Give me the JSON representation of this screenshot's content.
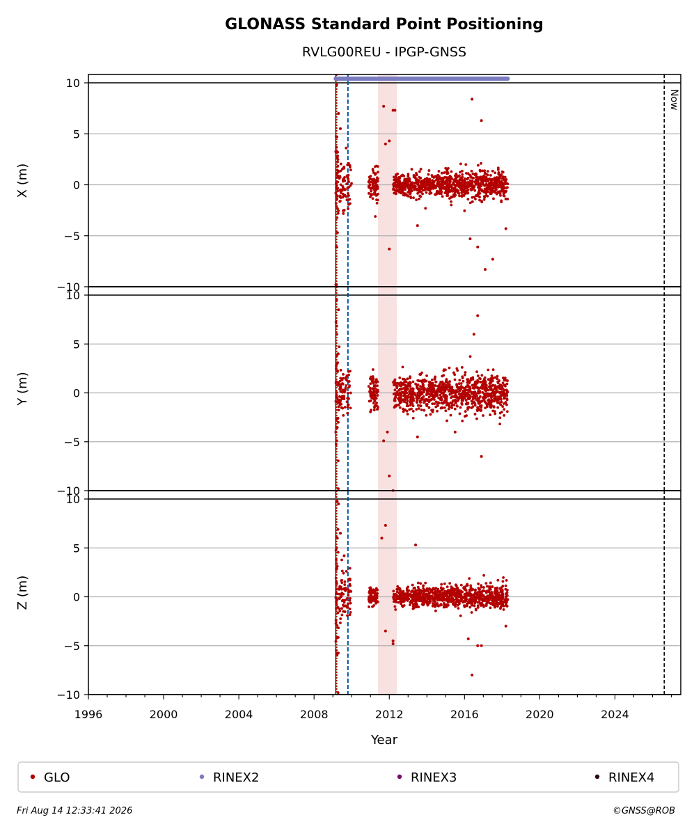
{
  "chart_data": {
    "type": "scatter",
    "title": "GLONASS Standard Point Positioning",
    "subtitle": "RVLG00REU - IPGP-GNSS",
    "xlabel": "Year",
    "xlim": [
      1996,
      2027.5
    ],
    "x_ticks": [
      "1996",
      "2000",
      "2004",
      "2008",
      "2012",
      "2016",
      "2020",
      "2024"
    ],
    "grid": "horizontal",
    "now_label": "Now",
    "now_year": 2026.62,
    "vlines": [
      {
        "year": 2009.15,
        "color": "#1a7a1a",
        "style": "solid"
      },
      {
        "year": 2009.2,
        "color": "#b30000",
        "style": "dotted"
      },
      {
        "year": 2009.8,
        "color": "#0050a0",
        "style": "dashed"
      }
    ],
    "shaded_gap": [
      2011.4,
      2012.4
    ],
    "rinex2_coverage": [
      2009.15,
      2018.3
    ],
    "panels": [
      {
        "ylabel": "X (m)",
        "ylim": [
          -10,
          10
        ],
        "yticks": [
          "10",
          "5",
          "0",
          "−5",
          "−10"
        ],
        "clusters": [
          {
            "x": [
              2009.15,
              2009.3
            ],
            "spread": 6.5,
            "n": 40
          },
          {
            "x": [
              2009.3,
              2010.0
            ],
            "spread": 2.2,
            "n": 70
          },
          {
            "x": [
              2010.9,
              2011.4
            ],
            "spread": 1.4,
            "n": 80
          },
          {
            "x": [
              2012.2,
              2014.8
            ],
            "spread": 1.0,
            "n": 380
          },
          {
            "x": [
              2014.8,
              2018.3
            ],
            "spread": 1.2,
            "n": 520
          }
        ],
        "outliers": [
          [
            2009.2,
            9.8
          ],
          [
            2009.3,
            7.0
          ],
          [
            2009.4,
            5.5
          ],
          [
            2011.7,
            7.7
          ],
          [
            2012.2,
            7.3
          ],
          [
            2012.3,
            7.3
          ],
          [
            2011.8,
            4.0
          ],
          [
            2012.0,
            4.3
          ],
          [
            2016.4,
            8.4
          ],
          [
            2016.9,
            6.3
          ],
          [
            2017.1,
            -8.3
          ],
          [
            2017.5,
            -7.3
          ],
          [
            2016.7,
            -6.1
          ],
          [
            2012.0,
            -6.3
          ],
          [
            2016.3,
            -5.3
          ],
          [
            2013.5,
            -4.0
          ],
          [
            2018.2,
            -4.3
          ]
        ]
      },
      {
        "ylabel": "Y (m)",
        "ylim": [
          -10,
          10
        ],
        "yticks": [
          "10",
          "5",
          "0",
          "−5",
          "−10"
        ],
        "clusters": [
          {
            "x": [
              2009.15,
              2009.3
            ],
            "spread": 7.0,
            "n": 40
          },
          {
            "x": [
              2009.3,
              2010.0
            ],
            "spread": 2.5,
            "n": 70
          },
          {
            "x": [
              2010.9,
              2011.4
            ],
            "spread": 2.0,
            "n": 80
          },
          {
            "x": [
              2012.2,
              2014.8
            ],
            "spread": 1.5,
            "n": 380
          },
          {
            "x": [
              2014.8,
              2018.3
            ],
            "spread": 1.8,
            "n": 520
          }
        ],
        "outliers": [
          [
            2009.2,
            9.5
          ],
          [
            2009.3,
            8.5
          ],
          [
            2016.7,
            7.9
          ],
          [
            2016.5,
            6.0
          ],
          [
            2011.9,
            -4.0
          ],
          [
            2011.7,
            -4.9
          ],
          [
            2012.0,
            -8.5
          ],
          [
            2012.2,
            -10.0
          ],
          [
            2016.9,
            -6.5
          ],
          [
            2013.5,
            -4.5
          ],
          [
            2015.5,
            -4.0
          ]
        ]
      },
      {
        "ylabel": "Z (m)",
        "ylim": [
          -10,
          10
        ],
        "yticks": [
          "10",
          "5",
          "0",
          "−5",
          "−10"
        ],
        "clusters": [
          {
            "x": [
              2009.15,
              2009.3
            ],
            "spread": 7.5,
            "n": 40
          },
          {
            "x": [
              2009.3,
              2010.0
            ],
            "spread": 2.5,
            "n": 70
          },
          {
            "x": [
              2010.9,
              2011.4
            ],
            "spread": 0.9,
            "n": 80
          },
          {
            "x": [
              2012.2,
              2014.8
            ],
            "spread": 0.9,
            "n": 380
          },
          {
            "x": [
              2014.8,
              2018.3
            ],
            "spread": 1.1,
            "n": 520
          }
        ],
        "outliers": [
          [
            2009.3,
            9.5
          ],
          [
            2009.4,
            6.5
          ],
          [
            2009.6,
            4.2
          ],
          [
            2011.8,
            7.3
          ],
          [
            2011.6,
            6.0
          ],
          [
            2013.4,
            5.3
          ],
          [
            2016.4,
            -8.0
          ],
          [
            2016.7,
            -5.0
          ],
          [
            2016.9,
            -5.0
          ],
          [
            2016.2,
            -4.3
          ],
          [
            2012.2,
            -4.5
          ],
          [
            2012.2,
            -4.8
          ],
          [
            2018.2,
            -3.0
          ],
          [
            2011.8,
            -3.5
          ]
        ]
      }
    ],
    "legend": [
      {
        "label": "GLO",
        "color": "#b30000"
      },
      {
        "label": "RINEX2",
        "color": "#7b7bbf"
      },
      {
        "label": "RINEX3",
        "color": "#7a0a6a"
      },
      {
        "label": "RINEX4",
        "color": "#2a0a14"
      }
    ],
    "colors": {
      "points": "#b30000",
      "rinex2": "#7b7bbf",
      "shade": "#f2c4c4"
    }
  },
  "footer": {
    "timestamp": "Fri Aug 14 12:33:41 2026",
    "credit": "©GNSS@ROB"
  }
}
